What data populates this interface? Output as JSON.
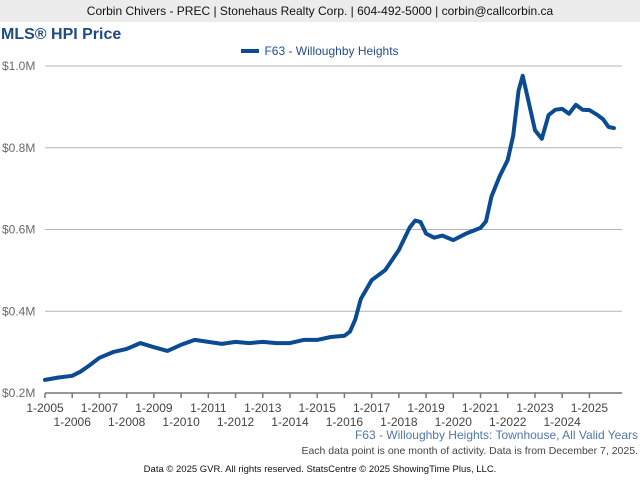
{
  "header": {
    "banner": "Corbin Chivers - PREC | Stonehaus Realty Corp. | 604-492-5000 | corbin@callcorbin.ca"
  },
  "footer": {
    "subtitle": "F63 - Willoughby Heights: Townhouse, All Valid Years",
    "note": "Each data point is one month of activity. Data is from December 7, 2025.",
    "copyright": "Data © 2025 GVR. All rights reserved. StatsCentre © 2025 ShowingTime Plus, LLC."
  },
  "chart_data": {
    "type": "line",
    "title": "MLS® HPI Price",
    "xlabel": "",
    "ylabel": "",
    "ylim": [
      200,
      1000
    ],
    "xlim": [
      2005.0,
      2025.95
    ],
    "y_unit": "thousands CAD",
    "grid": true,
    "legend_position": "top-center",
    "series_color": "#0a4b91",
    "y_ticks": [
      {
        "value": 200,
        "label": "$0.2M"
      },
      {
        "value": 400,
        "label": "$0.4M"
      },
      {
        "value": 600,
        "label": "$0.6M"
      },
      {
        "value": 800,
        "label": "$0.8M"
      },
      {
        "value": 1000,
        "label": "$1.0M"
      }
    ],
    "x_ticks": [
      {
        "value": 2005,
        "label": "1-2005"
      },
      {
        "value": 2006,
        "label": "1-2006"
      },
      {
        "value": 2007,
        "label": "1-2007"
      },
      {
        "value": 2008,
        "label": "1-2008"
      },
      {
        "value": 2009,
        "label": "1-2009"
      },
      {
        "value": 2010,
        "label": "1-2010"
      },
      {
        "value": 2011,
        "label": "1-2011"
      },
      {
        "value": 2012,
        "label": "1-2012"
      },
      {
        "value": 2013,
        "label": "1-2013"
      },
      {
        "value": 2014,
        "label": "1-2014"
      },
      {
        "value": 2015,
        "label": "1-2015"
      },
      {
        "value": 2016,
        "label": "1-2016"
      },
      {
        "value": 2017,
        "label": "1-2017"
      },
      {
        "value": 2018,
        "label": "1-2018"
      },
      {
        "value": 2019,
        "label": "1-2019"
      },
      {
        "value": 2020,
        "label": "1-2020"
      },
      {
        "value": 2021,
        "label": "1-2021"
      },
      {
        "value": 2022,
        "label": "1-2022"
      },
      {
        "value": 2023,
        "label": "1-2023"
      },
      {
        "value": 2024,
        "label": "1-2024"
      },
      {
        "value": 2025,
        "label": "1-2025"
      }
    ],
    "series": [
      {
        "name": "F63 - Willoughby Heights",
        "x": [
          2005.0,
          2005.5,
          2006.0,
          2006.3,
          2006.6,
          2007.0,
          2007.5,
          2008.0,
          2008.5,
          2009.0,
          2009.5,
          2010.0,
          2010.5,
          2011.0,
          2011.5,
          2012.0,
          2012.5,
          2013.0,
          2013.5,
          2014.0,
          2014.5,
          2015.0,
          2015.5,
          2016.0,
          2016.2,
          2016.4,
          2016.6,
          2017.0,
          2017.5,
          2018.0,
          2018.4,
          2018.6,
          2018.8,
          2019.0,
          2019.3,
          2019.6,
          2020.0,
          2020.5,
          2021.0,
          2021.2,
          2021.4,
          2021.7,
          2022.0,
          2022.2,
          2022.4,
          2022.55,
          2022.75,
          2023.0,
          2023.25,
          2023.5,
          2023.75,
          2024.0,
          2024.25,
          2024.5,
          2024.75,
          2025.0,
          2025.3,
          2025.5,
          2025.7,
          2025.9
        ],
        "values": [
          232,
          238,
          242,
          252,
          266,
          286,
          300,
          308,
          322,
          312,
          303,
          318,
          330,
          325,
          320,
          325,
          322,
          325,
          322,
          322,
          330,
          330,
          337,
          340,
          350,
          380,
          430,
          476,
          501,
          550,
          605,
          622,
          618,
          590,
          580,
          585,
          574,
          591,
          604,
          620,
          680,
          730,
          770,
          830,
          940,
          976,
          917,
          843,
          822,
          880,
          893,
          895,
          883,
          905,
          893,
          892,
          880,
          870,
          851,
          848
        ]
      }
    ]
  }
}
